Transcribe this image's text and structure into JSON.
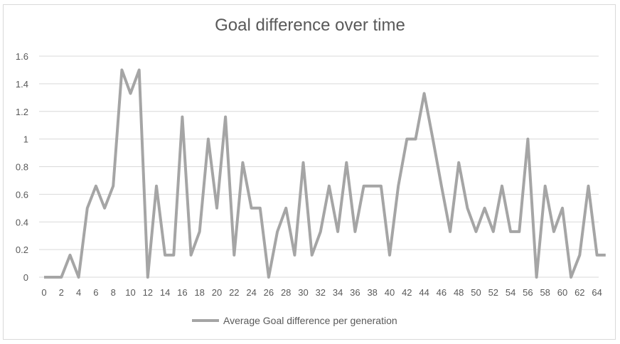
{
  "chart_data": {
    "type": "line",
    "title": "Goal difference over time",
    "xlabel": "",
    "ylabel": "",
    "xlim": [
      0,
      66
    ],
    "ylim": [
      0,
      1.6
    ],
    "x_ticks": [
      0,
      2,
      4,
      6,
      8,
      10,
      12,
      14,
      16,
      18,
      20,
      22,
      24,
      26,
      28,
      30,
      32,
      34,
      36,
      38,
      40,
      42,
      44,
      46,
      48,
      50,
      52,
      54,
      56,
      58,
      60,
      62,
      64
    ],
    "y_ticks": [
      0,
      0.2,
      0.4,
      0.6,
      0.8,
      1,
      1.2,
      1.4,
      1.6
    ],
    "y_tick_labels": [
      "0",
      "0.2",
      "0.4",
      "0.6",
      "0.8",
      "1",
      "1.2",
      "1.4",
      "1.6"
    ],
    "grid": true,
    "legend_position": "bottom",
    "color": "#a5a5a5",
    "series": [
      {
        "name": "Average Goal difference per generation",
        "x": [
          0,
          1,
          2,
          3,
          4,
          5,
          6,
          7,
          8,
          9,
          10,
          11,
          12,
          13,
          14,
          15,
          16,
          17,
          18,
          19,
          20,
          21,
          22,
          23,
          24,
          25,
          26,
          27,
          28,
          29,
          30,
          31,
          32,
          33,
          34,
          35,
          36,
          37,
          38,
          39,
          40,
          41,
          42,
          43,
          44,
          45,
          46,
          47,
          48,
          49,
          50,
          51,
          52,
          53,
          54,
          55,
          56,
          57,
          58,
          59,
          60,
          61,
          62,
          63,
          64,
          65
        ],
        "values": [
          0,
          0,
          0,
          0.16,
          0,
          0.5,
          0.66,
          0.5,
          0.66,
          1.5,
          1.33,
          1.5,
          0,
          0.66,
          0.16,
          0.16,
          1.16,
          0.16,
          0.33,
          1,
          0.5,
          1.16,
          0.16,
          0.83,
          0.5,
          0.5,
          0,
          0.33,
          0.5,
          0.16,
          0.83,
          0.16,
          0.33,
          0.66,
          0.33,
          0.83,
          0.33,
          0.66,
          0.66,
          0.66,
          0.16,
          0.66,
          1,
          1,
          1.33,
          1,
          0.66,
          0.33,
          0.83,
          0.5,
          0.33,
          0.5,
          0.33,
          0.66,
          0.33,
          0.33,
          1,
          0,
          0.66,
          0.33,
          0.5,
          0,
          0.16,
          0.66,
          0.16,
          0.16
        ]
      }
    ]
  }
}
